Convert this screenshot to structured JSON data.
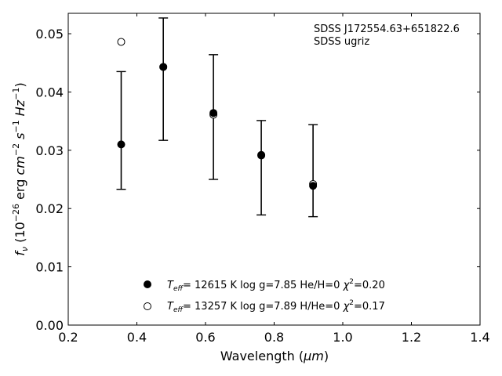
{
  "chart_data": {
    "type": "scatter",
    "title": "",
    "xlabel_main": "Wavelength (",
    "xlabel_unit": "μm",
    "xlabel_tail": ")",
    "ylabel_parts": {
      "f": "f",
      "nu": "ν",
      "open": " (10",
      "exp1": "−26",
      "erg": " erg ",
      "cm": "cm",
      "exp2": "−2",
      "s": " s",
      "exp3": "−1",
      "hz": " Hz",
      "exp4": "−1",
      "close": ")"
    },
    "xlim": [
      0.2,
      1.4
    ],
    "ylim": [
      0.0,
      0.0535
    ],
    "xticks": [
      0.2,
      0.4,
      0.6,
      0.8,
      1.0,
      1.2,
      1.4
    ],
    "xtick_labels": [
      "0.2",
      "0.4",
      "0.6",
      "0.8",
      "1.0",
      "1.2",
      "1.4"
    ],
    "yticks": [
      0.0,
      0.01,
      0.02,
      0.03,
      0.04,
      0.05
    ],
    "ytick_labels": [
      "0.00",
      "0.01",
      "0.02",
      "0.03",
      "0.04",
      "0.05"
    ],
    "grid": false,
    "annotation": [
      "SDSS J172554.63+651822.6",
      "SDSS ugriz"
    ],
    "observed": {
      "x": [
        0.3543,
        0.477,
        0.6231,
        0.7625,
        0.9134
      ],
      "y": [
        0.0334,
        0.0422,
        0.0357,
        0.027,
        0.0265
      ],
      "yerr": [
        0.0101,
        0.0105,
        0.0107,
        0.0081,
        0.0079
      ]
    },
    "series": [
      {
        "marker": "filled-circle",
        "label_parts": {
          "T": "T",
          "sub": "eff",
          "rest": "= 12615 K  log g=7.85  He/H=0  ",
          "chi": "χ",
          "sup": "2",
          "val": "=0.20"
        },
        "x": [
          0.3543,
          0.477,
          0.6231,
          0.7625,
          0.9134
        ],
        "y": [
          0.031,
          0.0443,
          0.0364,
          0.0292,
          0.0239
        ]
      },
      {
        "marker": "open-circle",
        "label_parts": {
          "T": "T",
          "sub": "eff",
          "rest": "= 13257 K  log g=7.89  H/He=0  ",
          "chi": "χ",
          "sup": "2",
          "val": "=0.17"
        },
        "x": [
          0.3543,
          0.477,
          0.6231,
          0.7625,
          0.9134
        ],
        "y": [
          0.0486,
          0.0443,
          0.0361,
          0.0291,
          0.0242
        ]
      }
    ],
    "legend_placement": "lower-center"
  }
}
